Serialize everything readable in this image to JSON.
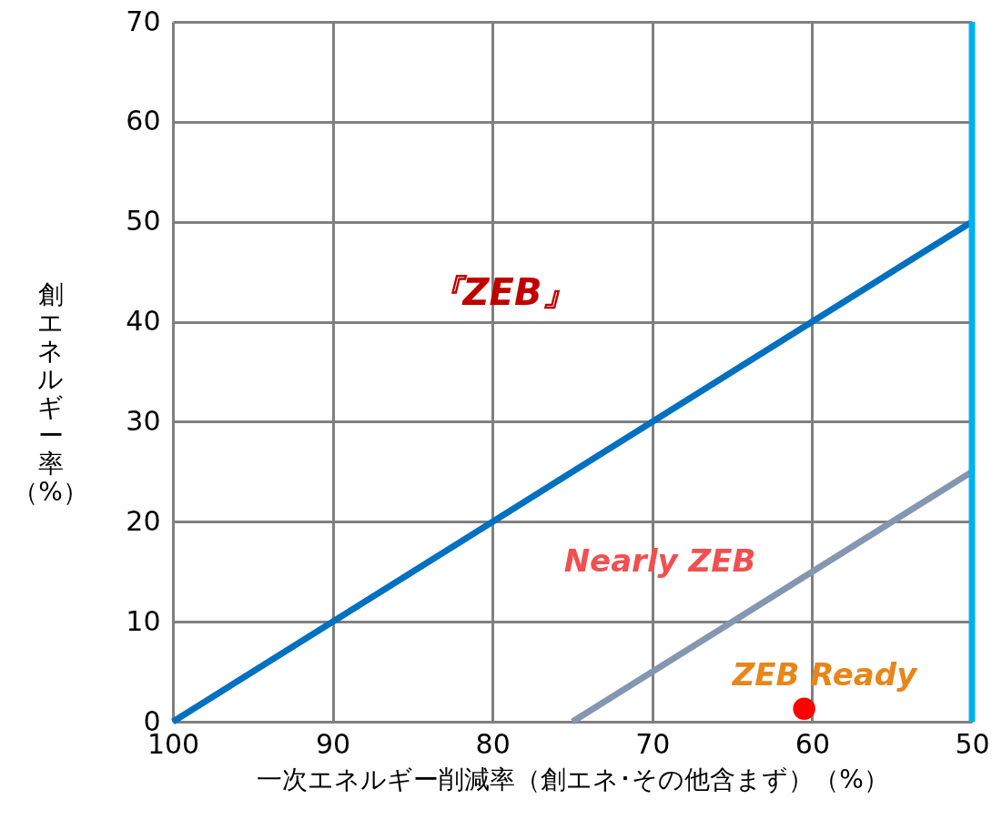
{
  "chart_data": {
    "type": "line",
    "xlabel": "一次エネルギー削減率（創エネ･その他含まず）（%）",
    "ylabel": "創エネルギー率（%）",
    "xlim": [
      100,
      50
    ],
    "xticks": [
      100,
      90,
      80,
      70,
      60,
      50
    ],
    "ylim": [
      0,
      70
    ],
    "yticks": [
      0,
      10,
      20,
      30,
      40,
      50,
      60,
      70
    ],
    "grid": true,
    "series": [
      {
        "color": "#0070c0",
        "x": [
          100,
          50
        ],
        "values": [
          0,
          50
        ]
      },
      {
        "color": "#8497b0",
        "x": [
          75,
          50
        ],
        "values": [
          0,
          25
        ]
      },
      {
        "type": "scatter",
        "color": "#ff0000",
        "x": [
          60.5
        ],
        "values": [
          1.3
        ],
        "marker": "circle"
      }
    ],
    "ref_lines": [
      {
        "axis": "x",
        "value": 50,
        "color": "#00b0f0"
      }
    ],
    "annotations": [
      "『ZEB』",
      "Nearly ZEB",
      "ZEB Ready"
    ]
  }
}
